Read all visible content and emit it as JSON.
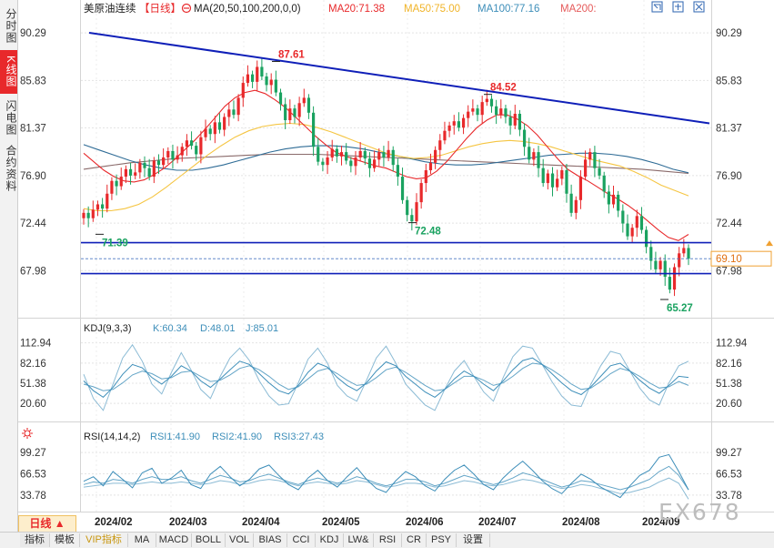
{
  "sidebar": {
    "items": [
      {
        "label": "分时图",
        "active": false
      },
      {
        "label": "K线图",
        "active": true
      },
      {
        "label": "闪电图",
        "active": false
      },
      {
        "label": "合约资料",
        "active": false
      }
    ]
  },
  "header": {
    "symbol": "美原油连续",
    "period_tag": "【日线】",
    "ma_params": "MA(20,50,100,200,0,0)",
    "ma20": "MA20:71.38",
    "ma50": "MA50:75.00",
    "ma100": "MA100:77.16",
    "ma200": "MA200:",
    "colors": {
      "ma20": "#e8292b",
      "ma50": "#f5c542",
      "ma100": "#3d8eb9",
      "ma200": "#e55a5a"
    }
  },
  "chart_data": [
    {
      "type": "candlestick",
      "x_ticks": [
        "2024/02",
        "2024/03",
        "2024/04",
        "2024/05",
        "2024/06",
        "2024/07",
        "2024/08",
        "2024/09"
      ],
      "y_ticks": [
        90.29,
        85.83,
        81.37,
        76.9,
        72.44,
        67.98
      ],
      "ylim": [
        64.5,
        91.5
      ],
      "current_price": "69.10",
      "annotations": [
        {
          "label": "87.61",
          "value": 87.61,
          "kind": "high"
        },
        {
          "label": "84.52",
          "value": 84.52,
          "kind": "high"
        },
        {
          "label": "71.39",
          "value": 71.39,
          "kind": "low"
        },
        {
          "label": "72.48",
          "value": 72.48,
          "kind": "low"
        },
        {
          "label": "65.27",
          "value": 65.27,
          "kind": "low"
        }
      ],
      "lines": [
        {
          "kind": "trendline",
          "from": [
            0,
            90.3
          ],
          "to": [
            159,
            81.8
          ]
        },
        {
          "kind": "horizontal",
          "value": 70.6
        },
        {
          "kind": "horizontal",
          "value": 67.7
        }
      ],
      "close": [
        73.4,
        72.9,
        73.7,
        74.2,
        73.8,
        75.2,
        76.4,
        75.9,
        76.8,
        77.5,
        76.9,
        77.2,
        78.1,
        77.6,
        76.8,
        78.3,
        77.9,
        78.6,
        79.2,
        78.4,
        78.8,
        79.6,
        80.2,
        79.7,
        78.9,
        80.5,
        81.3,
        80.8,
        81.9,
        81.2,
        82.4,
        83.1,
        82.6,
        84.2,
        85.6,
        86.4,
        85.7,
        87.1,
        86.2,
        85.4,
        85.9,
        84.7,
        83.6,
        82.1,
        83.2,
        82.4,
        83.7,
        84.2,
        82.8,
        79.6,
        78.2,
        77.9,
        78.6,
        79.4,
        78.7,
        79.1,
        78.3,
        77.8,
        78.6,
        79.2,
        78.5,
        77.6,
        78.4,
        79.1,
        78.6,
        79.3,
        77.9,
        76.8,
        74.6,
        73.2,
        72.6,
        74.4,
        76.2,
        77.4,
        78.1,
        79.3,
        80.2,
        81.1,
        81.6,
        82.0,
        81.4,
        82.3,
        82.9,
        83.2,
        82.6,
        83.8,
        84.1,
        83.4,
        82.6,
        83.2,
        82.4,
        81.6,
        82.7,
        81.2,
        79.6,
        78.4,
        79.1,
        77.6,
        76.2,
        77.1,
        75.8,
        76.6,
        77.4,
        75.2,
        73.4,
        74.6,
        76.8,
        78.4,
        79.1,
        77.6,
        76.9,
        75.4,
        74.2,
        75.1,
        73.6,
        72.4,
        71.2,
        72.0,
        73.1,
        71.8,
        70.2,
        68.9,
        68.1,
        68.9,
        67.4,
        66.2,
        68.3,
        69.6,
        70.1,
        69.1
      ],
      "ma20": [
        79.0,
        78.2,
        77.4,
        76.8,
        76.4,
        76.3,
        76.5,
        77.0,
        77.6,
        78.4,
        79.3,
        80.2,
        81.2,
        82.3,
        83.4,
        84.2,
        84.7,
        84.9,
        84.6,
        84.0,
        83.3,
        82.4,
        81.5,
        80.6,
        79.8,
        79.1,
        78.7,
        78.4,
        78.1,
        77.8,
        77.6,
        77.2,
        76.8,
        76.6,
        76.7,
        77.3,
        78.2,
        79.3,
        80.4,
        81.4,
        82.1,
        82.6,
        82.6,
        82.2,
        81.6,
        80.7,
        79.6,
        78.5,
        77.5,
        76.9,
        76.4,
        75.8,
        75.2,
        74.7,
        74.1,
        73.4,
        72.6,
        71.8,
        71.1,
        70.8,
        71.38
      ],
      "ma50": [
        73.8,
        73.6,
        73.6,
        73.8,
        74.2,
        74.9,
        75.8,
        76.8,
        77.8,
        78.8,
        79.7,
        80.5,
        81.1,
        81.5,
        81.7,
        81.8,
        81.7,
        81.4,
        81.0,
        80.5,
        80.0,
        79.5,
        79.0,
        78.7,
        78.5,
        78.6,
        78.8,
        79.2,
        79.6,
        79.9,
        80.1,
        80.2,
        80.1,
        79.9,
        79.6,
        79.2,
        78.8,
        78.4,
        78.1,
        77.8,
        77.3,
        76.7,
        76.0,
        75.5,
        75.0
      ],
      "ma100": [
        79.8,
        79.3,
        78.8,
        78.3,
        77.9,
        77.6,
        77.4,
        77.4,
        77.6,
        77.9,
        78.3,
        78.7,
        79.1,
        79.4,
        79.6,
        79.7,
        79.7,
        79.6,
        79.4,
        79.1,
        78.8,
        78.5,
        78.2,
        78.0,
        77.9,
        77.9,
        78.0,
        78.2,
        78.4,
        78.6,
        78.8,
        78.9,
        79.0,
        79.0,
        78.9,
        78.7,
        78.4,
        78.0,
        77.5,
        77.16
      ],
      "ma200": [
        77.5,
        77.8,
        78.1,
        78.3,
        78.5,
        78.6,
        78.7,
        78.8,
        78.9,
        78.9,
        78.9,
        78.8,
        78.7,
        78.6,
        78.5,
        78.4,
        78.3,
        78.2,
        78.1,
        78.0,
        77.9,
        77.8,
        77.7,
        77.6,
        77.5,
        77.3,
        77.1
      ]
    },
    {
      "type": "line",
      "title": "KDJ(9,3,3)",
      "legend": [
        {
          "label": "K:60.34",
          "color": "#3d8eb9"
        },
        {
          "label": "D:48.01",
          "color": "#3d8eb9"
        },
        {
          "label": "J:85.01",
          "color": "#3d8eb9"
        }
      ],
      "y_ticks": [
        112.94,
        82.16,
        51.38,
        20.6
      ],
      "ylim": [
        0,
        125
      ],
      "K": [
        55,
        40,
        30,
        45,
        65,
        80,
        75,
        60,
        50,
        62,
        78,
        70,
        55,
        45,
        58,
        72,
        85,
        80,
        66,
        52,
        40,
        35,
        48,
        68,
        82,
        76,
        60,
        48,
        40,
        52,
        70,
        84,
        78,
        62,
        50,
        38,
        30,
        42,
        58,
        70,
        62,
        50,
        40,
        55,
        72,
        86,
        90,
        80,
        66,
        52,
        40,
        34,
        46,
        62,
        78,
        82,
        70,
        56,
        44,
        36,
        48,
        62,
        60.34
      ],
      "D": [
        50,
        46,
        40,
        42,
        52,
        64,
        70,
        66,
        58,
        60,
        68,
        70,
        62,
        54,
        56,
        64,
        74,
        78,
        72,
        62,
        50,
        42,
        46,
        58,
        70,
        74,
        66,
        56,
        48,
        50,
        60,
        72,
        76,
        68,
        58,
        48,
        40,
        42,
        52,
        62,
        62,
        56,
        48,
        52,
        62,
        74,
        82,
        80,
        72,
        62,
        50,
        42,
        44,
        54,
        66,
        74,
        70,
        62,
        52,
        44,
        46,
        54,
        48.01
      ],
      "J": [
        65,
        28,
        10,
        50,
        90,
        110,
        85,
        50,
        35,
        68,
        98,
        72,
        42,
        28,
        62,
        90,
        105,
        86,
        55,
        32,
        18,
        20,
        52,
        88,
        105,
        82,
        48,
        32,
        24,
        56,
        90,
        108,
        82,
        50,
        34,
        18,
        10,
        42,
        70,
        86,
        62,
        38,
        24,
        60,
        92,
        108,
        105,
        80,
        54,
        32,
        18,
        16,
        50,
        78,
        100,
        96,
        70,
        44,
        26,
        18,
        52,
        78,
        85.01
      ]
    },
    {
      "type": "line",
      "title": "RSI(14,14,2)",
      "legend": [
        {
          "label": "RSI1:41.90",
          "color": "#3d8eb9"
        },
        {
          "label": "RSI2:41.90",
          "color": "#3d8eb9"
        },
        {
          "label": "RSI3:27.43",
          "color": "#3d8eb9"
        }
      ],
      "y_ticks": [
        99.27,
        66.53,
        33.78
      ],
      "ylim": [
        14,
        112
      ],
      "RSI1": [
        55,
        62,
        48,
        70,
        58,
        45,
        68,
        75,
        52,
        60,
        72,
        50,
        44,
        66,
        78,
        62,
        48,
        58,
        74,
        80,
        64,
        50,
        42,
        60,
        72,
        56,
        46,
        62,
        76,
        58,
        44,
        38,
        56,
        70,
        62,
        48,
        40,
        58,
        72,
        80,
        66,
        50,
        42,
        60,
        74,
        86,
        72,
        56,
        44,
        36,
        52,
        66,
        58,
        46,
        38,
        30,
        48,
        64,
        72,
        92,
        96,
        70,
        41.9
      ],
      "RSI2": [
        50,
        54,
        52,
        58,
        56,
        52,
        58,
        62,
        58,
        58,
        62,
        56,
        52,
        58,
        64,
        60,
        54,
        56,
        62,
        66,
        60,
        54,
        50,
        56,
        60,
        56,
        52,
        56,
        62,
        58,
        52,
        48,
        52,
        58,
        58,
        54,
        48,
        52,
        58,
        64,
        60,
        54,
        50,
        54,
        60,
        68,
        64,
        58,
        52,
        46,
        50,
        56,
        54,
        50,
        46,
        42,
        46,
        52,
        58,
        70,
        78,
        64,
        41.9
      ],
      "RSI3": [
        46,
        48,
        50,
        52,
        52,
        50,
        52,
        54,
        52,
        52,
        54,
        52,
        50,
        52,
        56,
        54,
        50,
        52,
        56,
        58,
        56,
        52,
        48,
        52,
        54,
        52,
        50,
        52,
        56,
        54,
        50,
        46,
        48,
        52,
        52,
        50,
        46,
        48,
        52,
        56,
        54,
        50,
        48,
        50,
        54,
        58,
        56,
        52,
        48,
        44,
        46,
        50,
        48,
        44,
        40,
        36,
        38,
        42,
        46,
        54,
        60,
        52,
        27.43
      ]
    }
  ],
  "bottom": {
    "period_button": "日线 ▲",
    "tabs": [
      "指标",
      "模板",
      "VIP指标",
      "MA",
      "MACD",
      "BOLL",
      "VOL",
      "BIAS",
      "CCI",
      "KDJ",
      "LW&",
      "RSI",
      "CR",
      "PSY",
      "设置"
    ]
  },
  "watermark": "EX678"
}
